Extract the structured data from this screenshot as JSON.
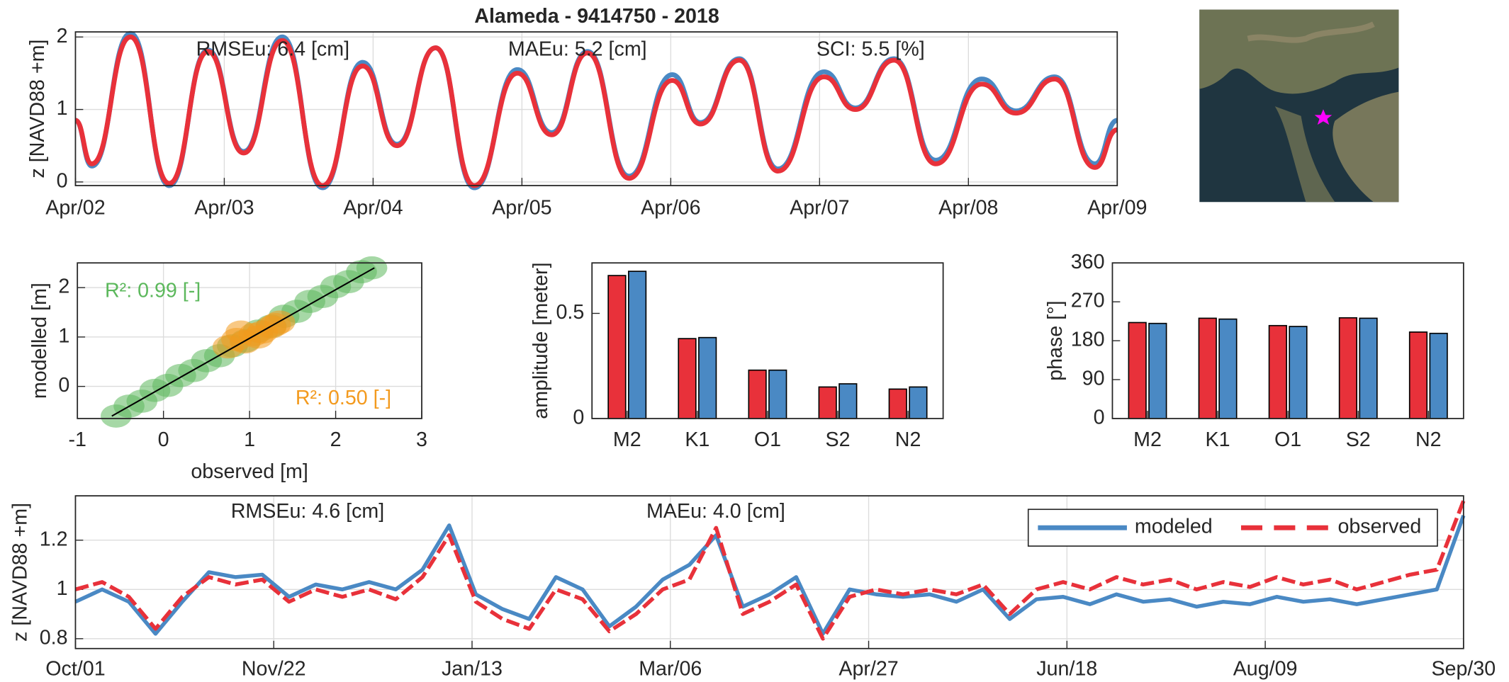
{
  "chart_data": [
    {
      "type": "line",
      "title": "Alameda - 9414750 - 2018",
      "ylabel": "z [NAVD88 +m]",
      "xlim": [
        0,
        7
      ],
      "xticks": [
        {
          "value": 0,
          "label": "Apr/02"
        },
        {
          "value": 1,
          "label": "Apr/03"
        },
        {
          "value": 2,
          "label": "Apr/04"
        },
        {
          "value": 3,
          "label": "Apr/05"
        },
        {
          "value": 4,
          "label": "Apr/06"
        },
        {
          "value": 5,
          "label": "Apr/07"
        },
        {
          "value": 6,
          "label": "Apr/08"
        },
        {
          "value": 7,
          "label": "Apr/09"
        }
      ],
      "ylim": [
        -0.05,
        2.07
      ],
      "yticks": [
        0,
        1,
        2
      ],
      "grid": true,
      "x": [
        0,
        0.11,
        0.37,
        0.63,
        0.89,
        1.13,
        1.39,
        1.66,
        1.93,
        2.16,
        2.42,
        2.68,
        2.97,
        3.2,
        3.44,
        3.72,
        4.01,
        4.2,
        4.46,
        4.72,
        5.03,
        5.24,
        5.5,
        5.78,
        6.09,
        6.32,
        6.58,
        6.85,
        7
      ],
      "series": [
        {
          "color": "#4a89c4",
          "values": [
            0.85,
            0.22,
            2.05,
            -0.05,
            1.82,
            0.42,
            2.0,
            -0.08,
            1.65,
            0.52,
            1.85,
            -0.08,
            1.55,
            0.68,
            1.8,
            0.08,
            1.48,
            0.82,
            1.7,
            0.18,
            1.52,
            1.02,
            1.7,
            0.3,
            1.42,
            0.98,
            1.45,
            0.25,
            0.85
          ]
        },
        {
          "color": "#e8313a",
          "values": [
            0.85,
            0.25,
            2.0,
            -0.02,
            1.8,
            0.4,
            1.95,
            -0.05,
            1.6,
            0.5,
            1.85,
            -0.05,
            1.5,
            0.65,
            1.78,
            0.05,
            1.4,
            0.8,
            1.68,
            0.15,
            1.45,
            1.0,
            1.68,
            0.25,
            1.35,
            0.95,
            1.42,
            0.2,
            0.72
          ]
        }
      ],
      "annotations": [
        "RMSEu: 6.4 [cm]",
        "MAEu: 5.2 [cm]",
        "SCI: 5.5 [%]"
      ]
    },
    {
      "type": "scatter",
      "xlabel": "observed [m]",
      "ylabel": "modelled [m]",
      "xlim": [
        -1,
        3
      ],
      "ylim": [
        -0.65,
        2.5
      ],
      "xticks": [
        -1,
        0,
        1,
        2,
        3
      ],
      "yticks": [
        0,
        1,
        2
      ],
      "grid": true,
      "series": [
        {
          "mode": "markers",
          "color": "#5cb85c",
          "x": [
            -0.55,
            -0.4,
            -0.25,
            -0.1,
            0.05,
            0.2,
            0.35,
            0.5,
            0.65,
            0.8,
            0.95,
            1.1,
            1.25,
            1.4,
            1.55,
            1.7,
            1.85,
            2.0,
            2.15,
            2.3,
            2.42
          ],
          "values": [
            -0.6,
            -0.4,
            -0.3,
            -0.08,
            0.02,
            0.22,
            0.32,
            0.52,
            0.62,
            0.82,
            0.92,
            1.12,
            1.22,
            1.42,
            1.52,
            1.72,
            1.82,
            2.02,
            2.12,
            2.32,
            2.4
          ]
        },
        {
          "mode": "markers",
          "color": "#f39a1e",
          "x": [
            0.75,
            0.85,
            0.95,
            1.05,
            1.15,
            1.25,
            1.35,
            0.9,
            1.1,
            1.3
          ],
          "values": [
            0.8,
            0.95,
            0.9,
            1.05,
            1.1,
            1.2,
            1.3,
            1.1,
            1.0,
            1.25
          ]
        },
        {
          "mode": "line",
          "color": "#000000",
          "x": [
            -0.6,
            2.45
          ],
          "values": [
            -0.6,
            2.4
          ]
        }
      ],
      "annotations": [
        {
          "text": "R²: 0.99 [-]",
          "color": "#5cb85c"
        },
        {
          "text": "R²: 0.50 [-]",
          "color": "#f39a1e"
        }
      ]
    },
    {
      "type": "bar",
      "ylabel": "amplitude [meter]",
      "categories": [
        "M2",
        "K1",
        "O1",
        "S2",
        "N2"
      ],
      "ylim": [
        0,
        0.74
      ],
      "yticks": [
        0,
        0.5
      ],
      "grid": false,
      "series": [
        {
          "color": "#e8313a",
          "values": [
            0.68,
            0.38,
            0.23,
            0.15,
            0.14
          ]
        },
        {
          "color": "#4a89c4",
          "values": [
            0.7,
            0.385,
            0.23,
            0.165,
            0.15
          ]
        }
      ]
    },
    {
      "type": "bar",
      "ylabel": "phase [°]",
      "categories": [
        "M2",
        "K1",
        "O1",
        "S2",
        "N2"
      ],
      "ylim": [
        0,
        360
      ],
      "yticks": [
        0,
        90,
        180,
        270,
        360
      ],
      "grid": false,
      "series": [
        {
          "color": "#e8313a",
          "values": [
            222,
            232,
            215,
            233,
            200
          ]
        },
        {
          "color": "#4a89c4",
          "values": [
            220,
            230,
            213,
            232,
            197
          ]
        }
      ]
    },
    {
      "type": "line",
      "ylabel": "z [NAVD88 +m]",
      "xlim": [
        0,
        364
      ],
      "xticks": [
        {
          "value": 0,
          "label": "Oct/01"
        },
        {
          "value": 52,
          "label": "Nov/22"
        },
        {
          "value": 104,
          "label": "Jan/13"
        },
        {
          "value": 156,
          "label": "Mar/06"
        },
        {
          "value": 208,
          "label": "Apr/27"
        },
        {
          "value": 260,
          "label": "Jun/18"
        },
        {
          "value": 312,
          "label": "Aug/09"
        },
        {
          "value": 364,
          "label": "Sep/30"
        }
      ],
      "ylim": [
        0.76,
        1.38
      ],
      "yticks": [
        0.8,
        1,
        1.2
      ],
      "grid": true,
      "legend": "upper right",
      "x": [
        0,
        7,
        14,
        21,
        28,
        35,
        42,
        49,
        56,
        63,
        70,
        77,
        84,
        91,
        98,
        105,
        112,
        119,
        126,
        133,
        140,
        147,
        154,
        161,
        168,
        175,
        182,
        189,
        196,
        203,
        210,
        217,
        224,
        231,
        238,
        245,
        252,
        259,
        266,
        273,
        280,
        287,
        294,
        301,
        308,
        315,
        322,
        329,
        336,
        343,
        350,
        357,
        364
      ],
      "series": [
        {
          "name": "modeled",
          "color": "#4a89c4",
          "dash": false,
          "values": [
            0.95,
            1.0,
            0.95,
            0.82,
            0.95,
            1.07,
            1.05,
            1.06,
            0.97,
            1.02,
            1.0,
            1.03,
            1.0,
            1.08,
            1.26,
            0.98,
            0.92,
            0.88,
            1.05,
            1.0,
            0.85,
            0.93,
            1.04,
            1.1,
            1.22,
            0.93,
            0.98,
            1.05,
            0.82,
            1.0,
            0.98,
            0.97,
            0.98,
            0.95,
            1.0,
            0.88,
            0.96,
            0.97,
            0.94,
            0.98,
            0.95,
            0.96,
            0.93,
            0.95,
            0.94,
            0.97,
            0.95,
            0.96,
            0.94,
            0.96,
            0.98,
            1.0,
            1.3
          ]
        },
        {
          "name": "observed",
          "color": "#e8313a",
          "dash": true,
          "values": [
            1.0,
            1.03,
            0.97,
            0.84,
            0.97,
            1.05,
            1.02,
            1.04,
            0.95,
            1.0,
            0.97,
            1.0,
            0.96,
            1.05,
            1.22,
            0.95,
            0.88,
            0.84,
            1.0,
            0.96,
            0.83,
            0.9,
            1.0,
            1.04,
            1.25,
            0.9,
            0.95,
            1.02,
            0.8,
            0.97,
            1.0,
            0.98,
            1.0,
            0.98,
            1.02,
            0.9,
            1.0,
            1.03,
            1.0,
            1.05,
            1.02,
            1.04,
            1.0,
            1.03,
            1.01,
            1.05,
            1.02,
            1.04,
            1.0,
            1.03,
            1.06,
            1.08,
            1.36
          ]
        }
      ],
      "annotations": [
        "RMSEu: 4.6 [cm]",
        "MAEu: 4.0 [cm]"
      ]
    }
  ]
}
